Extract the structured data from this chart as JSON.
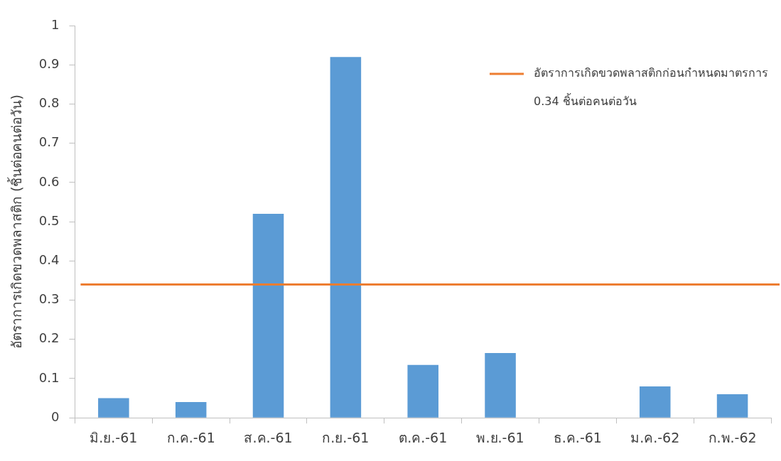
{
  "chart_data": {
    "type": "bar",
    "ylabel": "อัตราการเกิดขวดพลาสติก (ชิ้นต่อคนต่อวัน)",
    "categories": [
      "มิ.ย.-61",
      "ก.ค.-61",
      "ส.ค.-61",
      "ก.ย.-61",
      "ต.ค.-61",
      "พ.ย.-61",
      "ธ.ค.-61",
      "ม.ค.-62",
      "ก.พ.-62"
    ],
    "values": [
      0.05,
      0.04,
      0.52,
      0.92,
      0.135,
      0.165,
      0,
      0.08,
      0.06
    ],
    "color": "#5b9bd5",
    "ylim": [
      0,
      1
    ],
    "yticks": [
      0,
      0.1,
      0.2,
      0.3,
      0.4,
      0.5,
      0.6,
      0.7,
      0.8,
      0.9,
      1
    ],
    "ref_lines": [
      {
        "axis": "y",
        "value": 0.34,
        "label": "อัตราการเกิดขวดพลาสติกก่อนกำหนดมาตรการ\n0.34 ชิ้นต่อคนต่อวัน",
        "color": "#ed7d31"
      }
    ],
    "grid": false
  }
}
